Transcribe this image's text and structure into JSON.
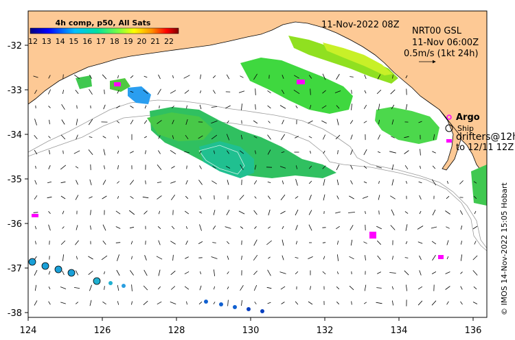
{
  "header": {
    "colorbar_title": "4h comp, p50, All Sats",
    "datetime": "11-Nov-2022 08Z",
    "product": "NRT00 GSL",
    "product_time": "11-Nov 06:00Z",
    "scale_label": "0.5m/s (1kt 24h)"
  },
  "colorbar": {
    "ticks": [
      "12",
      "13",
      "14",
      "15",
      "16",
      "17",
      "18",
      "19",
      "20",
      "21",
      "22"
    ],
    "colors": [
      "#00007f",
      "#0000ff",
      "#007fff",
      "#00ffff",
      "#7fff7f",
      "#ffff00",
      "#ff7f00",
      "#ff0000",
      "#7f0000"
    ]
  },
  "legend": {
    "argo_label": "Argo",
    "ship_label": "Ship",
    "drifters_label": "drifters@12h",
    "drifters_range": "to 12/11 12Z"
  },
  "credit": "© IMOS 14-Nov-2022 15:05 Hobart",
  "axes": {
    "x_ticks": [
      "124",
      "126",
      "128",
      "130",
      "132",
      "134",
      "136"
    ],
    "y_ticks": [
      "-32",
      "-33",
      "-34",
      "-35",
      "-36",
      "-37",
      "-38"
    ]
  },
  "colors": {
    "land": "#fdc995",
    "ocean": "#ffffff",
    "argo": "#ff00ff",
    "current_arrow": "#000000",
    "bathymetry": "#999999"
  }
}
